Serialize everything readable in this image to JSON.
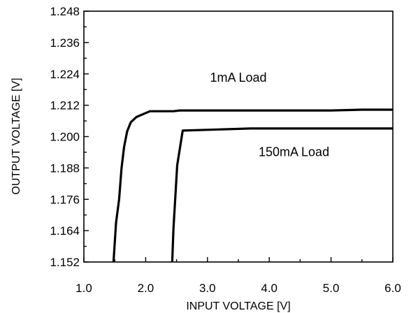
{
  "chart_data": {
    "type": "line",
    "title": "",
    "xlabel": "INPUT VOLTAGE [V]",
    "ylabel": "OUTPUT VOLTAGE [V]",
    "xlim": [
      1.0,
      6.0
    ],
    "ylim": [
      1.152,
      1.248
    ],
    "x_ticks": [
      "1.0",
      "2.0",
      "3.0",
      "4.0",
      "5.0",
      "6.0"
    ],
    "y_ticks": [
      "1.152",
      "1.164",
      "1.176",
      "1.188",
      "1.200",
      "1.212",
      "1.224",
      "1.236",
      "1.248"
    ],
    "grid": false,
    "annotations": [
      {
        "text": "1mA Load",
        "x": 3.5,
        "y": 1.221
      },
      {
        "text": "150mA Load",
        "x": 4.4,
        "y": 1.1925
      }
    ],
    "series": [
      {
        "x": [
          1.48,
          1.52,
          1.57,
          1.61,
          1.65,
          1.7,
          1.76,
          1.85,
          1.95,
          2.07,
          2.45,
          2.55,
          3.5,
          5.0,
          5.5,
          6.0
        ],
        "y": [
          1.152,
          1.167,
          1.176,
          1.188,
          1.196,
          1.202,
          1.2055,
          1.2075,
          1.2085,
          1.2097,
          1.2097,
          1.21,
          1.21,
          1.21,
          1.2103,
          1.2103
        ]
      },
      {
        "x": [
          2.43,
          2.45,
          2.51,
          2.6,
          3.0,
          3.7,
          5.0,
          6.0
        ],
        "y": [
          1.152,
          1.165,
          1.189,
          1.2023,
          1.2026,
          1.2031,
          1.2031,
          1.2031
        ]
      }
    ]
  }
}
